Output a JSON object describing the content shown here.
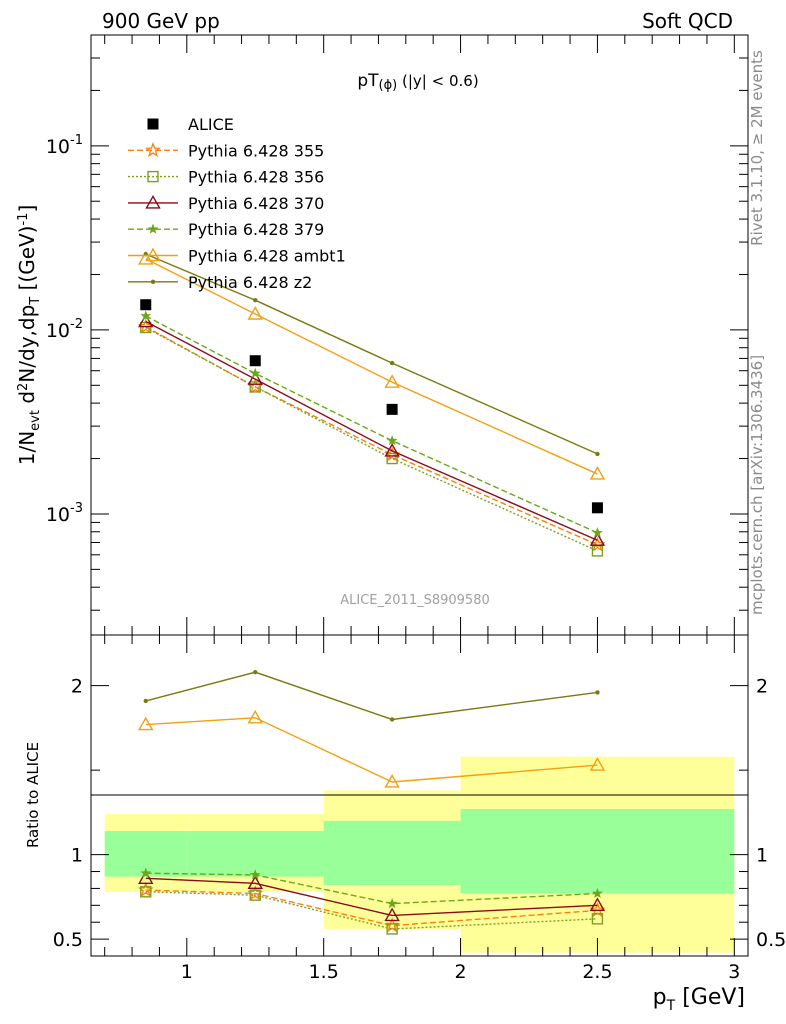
{
  "header": {
    "left": "900 GeV pp",
    "right": "Soft QCD"
  },
  "side_labels": {
    "rivet": "Rivet 3.1.10, ≥ 2M events",
    "mcplots": "mcplots.cern.ch [arXiv:1306.3436]"
  },
  "analysis_id": "ALICE_2011_S8909580",
  "chart_data": [
    {
      "panel": "main",
      "type": "line",
      "title": "pT(φ) (|y| < 0.6)",
      "ylabel": "1/N_evt d²N/dy,dp_T [(GeV)⁻¹]",
      "yscale": "log",
      "xlim": [
        0.65,
        3.05
      ],
      "ylim": [
        0.00022,
        0.4
      ],
      "y_ticks": [
        "10^-3",
        "10^-2",
        "10^-1"
      ],
      "legend_position": "top-left",
      "x": [
        0.85,
        1.25,
        1.75,
        2.5
      ],
      "series": [
        {
          "name": "ALICE",
          "color": "#000000",
          "marker": "square",
          "values": [
            0.0137,
            0.0068,
            0.0037,
            0.00108
          ]
        },
        {
          "name": "Pythia 6.428 355",
          "color": "#ff7f0e",
          "marker": "star",
          "dash": "6,3",
          "values": [
            0.0104,
            0.0049,
            0.0021,
            0.00068
          ]
        },
        {
          "name": "Pythia 6.428 356",
          "color": "#7f9f1f",
          "marker": "open-square",
          "dash": "2,2",
          "values": [
            0.0103,
            0.0049,
            0.002,
            0.00063
          ]
        },
        {
          "name": "Pythia 6.428 370",
          "color": "#8b0a1a",
          "marker": "open-triangle",
          "values": [
            0.0111,
            0.0054,
            0.0022,
            0.00072
          ]
        },
        {
          "name": "Pythia 6.428 379",
          "color": "#6aa81b",
          "marker": "small-star",
          "dash": "6,3",
          "values": [
            0.0119,
            0.0058,
            0.0025,
            0.00079
          ]
        },
        {
          "name": "Pythia 6.428 ambt1",
          "color": "#f0a010",
          "marker": "open-triangle",
          "values": [
            0.0243,
            0.0122,
            0.0052,
            0.00165
          ]
        },
        {
          "name": "Pythia 6.428 z2",
          "color": "#7a7a10",
          "marker": "dot",
          "values": [
            0.0258,
            0.0145,
            0.0066,
            0.00212
          ]
        }
      ]
    },
    {
      "panel": "ratio",
      "type": "line",
      "ylabel": "Ratio to ALICE",
      "xlabel": "p_T [GeV]",
      "xlim": [
        0.65,
        3.05
      ],
      "ylim": [
        0.4,
        2.3
      ],
      "y_ticks": [
        "0.5",
        "1",
        "2"
      ],
      "x_ticks": [
        "1",
        "1.5",
        "2",
        "2.5",
        "3"
      ],
      "bands": [
        {
          "x_range": [
            0.7,
            1.0
          ],
          "inner": [
            0.87,
            1.14
          ],
          "outer": [
            0.78,
            1.24
          ]
        },
        {
          "x_range": [
            1.0,
            1.5
          ],
          "inner": [
            0.87,
            1.14
          ],
          "outer": [
            0.78,
            1.24
          ]
        },
        {
          "x_range": [
            1.5,
            2.0
          ],
          "inner": [
            0.82,
            1.2
          ],
          "outer": [
            0.56,
            1.38
          ]
        },
        {
          "x_range": [
            2.0,
            3.0
          ],
          "inner": [
            0.77,
            1.27
          ],
          "outer": [
            0.42,
            1.58
          ]
        }
      ],
      "x": [
        0.85,
        1.25,
        1.75,
        2.5
      ],
      "series": [
        {
          "name": "Pythia 6.428 355",
          "color": "#ff7f0e",
          "marker": "star",
          "dash": "6,3",
          "values": [
            0.79,
            0.77,
            0.58,
            0.67
          ]
        },
        {
          "name": "Pythia 6.428 356",
          "color": "#7f9f1f",
          "marker": "open-square",
          "dash": "2,2",
          "values": [
            0.78,
            0.76,
            0.56,
            0.62
          ]
        },
        {
          "name": "Pythia 6.428 370",
          "color": "#8b0a1a",
          "marker": "open-triangle",
          "values": [
            0.86,
            0.83,
            0.64,
            0.7
          ]
        },
        {
          "name": "Pythia 6.428 379",
          "color": "#6aa81b",
          "marker": "small-star",
          "dash": "6,3",
          "values": [
            0.89,
            0.88,
            0.71,
            0.77
          ]
        },
        {
          "name": "Pythia 6.428 ambt1",
          "color": "#f0a010",
          "marker": "open-triangle",
          "values": [
            1.77,
            1.81,
            1.43,
            1.53
          ]
        },
        {
          "name": "Pythia 6.428 z2",
          "color": "#7a7a10",
          "marker": "dot",
          "values": [
            1.91,
            2.08,
            1.8,
            1.96
          ]
        }
      ]
    }
  ]
}
